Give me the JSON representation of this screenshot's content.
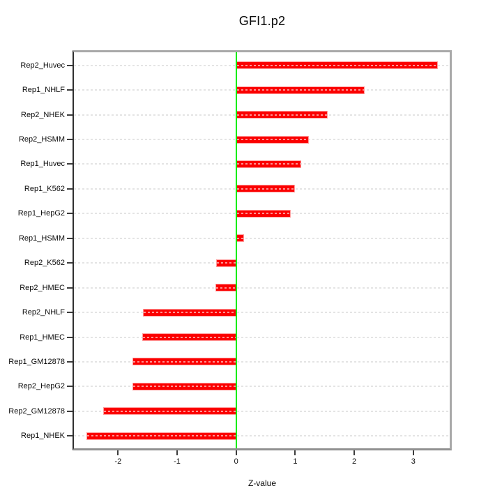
{
  "title": "GFI1.p2",
  "x_axis_label": "Z-value",
  "colors": {
    "bar_fill": "#fb0000",
    "bar_border": "#ff9c9c",
    "zero_line": "#00ee00",
    "grid_dash": "#e4e4e4",
    "box_gray": "#a9a9a9",
    "axis_dark": "#2f2f2f",
    "tick": "#3c3c3c",
    "text": "#0a0a0a",
    "background": "#ffffff"
  },
  "chart_data": {
    "type": "bar",
    "orientation": "horizontal",
    "title": "GFI1.p2",
    "xlabel": "Z-value",
    "ylabel": "",
    "categories": [
      "Rep2_Huvec",
      "Rep1_NHLF",
      "Rep2_NHEK",
      "Rep2_HSMM",
      "Rep1_Huvec",
      "Rep1_K562",
      "Rep1_HepG2",
      "Rep1_HSMM",
      "Rep2_K562",
      "Rep2_HMEC",
      "Rep2_NHLF",
      "Rep1_HMEC",
      "Rep1_GM12878",
      "Rep2_HepG2",
      "Rep2_GM12878",
      "Rep1_NHEK"
    ],
    "values": [
      3.42,
      2.18,
      1.55,
      1.23,
      1.1,
      0.99,
      0.93,
      0.13,
      -0.34,
      -0.35,
      -1.58,
      -1.59,
      -1.75,
      -1.76,
      -2.25,
      -2.54
    ],
    "x_ticks": [
      -2,
      -1,
      0,
      1,
      2,
      3
    ],
    "xlim": [
      -2.77,
      3.65
    ],
    "grid": "horizontal dotted line per category",
    "zero_reference_line": 0,
    "legend": "none",
    "sort_order": "descending top to bottom"
  }
}
